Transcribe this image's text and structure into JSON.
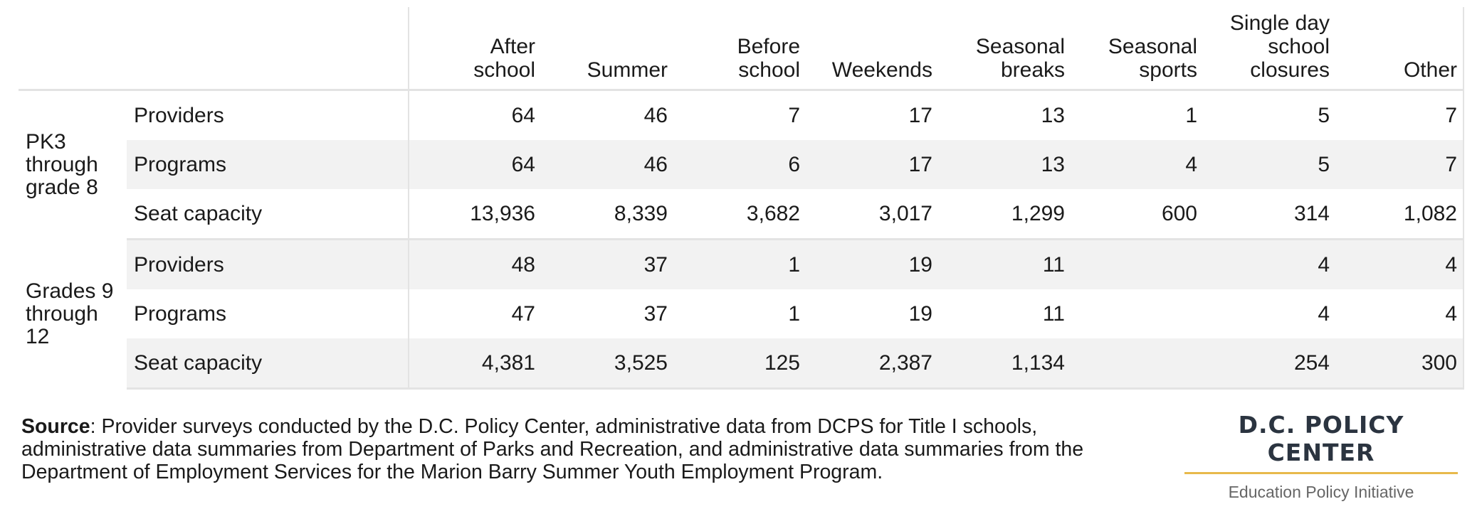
{
  "chart_data": {
    "type": "table",
    "columns": [
      "After school",
      "Summer",
      "Before school",
      "Weekends",
      "Seasonal breaks",
      "Seasonal sports",
      "Single day school closures",
      "Other"
    ],
    "groups": [
      {
        "label": "PK3 through grade 8",
        "rows": [
          {
            "label": "Providers",
            "values": [
              "64",
              "46",
              "7",
              "17",
              "13",
              "1",
              "5",
              "7"
            ]
          },
          {
            "label": "Programs",
            "values": [
              "64",
              "46",
              "6",
              "17",
              "13",
              "4",
              "5",
              "7"
            ]
          },
          {
            "label": "Seat capacity",
            "values": [
              "13,936",
              "8,339",
              "3,682",
              "3,017",
              "1,299",
              "600",
              "314",
              "1,082"
            ]
          }
        ]
      },
      {
        "label": "Grades 9 through 12",
        "rows": [
          {
            "label": "Providers",
            "values": [
              "48",
              "37",
              "1",
              "19",
              "11",
              "",
              "4",
              "4"
            ]
          },
          {
            "label": "Programs",
            "values": [
              "47",
              "37",
              "1",
              "19",
              "11",
              "",
              "4",
              "4"
            ]
          },
          {
            "label": "Seat capacity",
            "values": [
              "4,381",
              "3,525",
              "125",
              "2,387",
              "1,134",
              "",
              "254",
              "300"
            ]
          }
        ]
      }
    ]
  },
  "footer": {
    "source_label": "Source",
    "source_text": ": Provider surveys conducted by the D.C. Policy Center, administrative data from DCPS for Title I schools, administrative data summaries from Department of Parks and Recreation, and administrative data summaries from the Department of Employment Services for the Marion Barry Summer Youth Employment Program."
  },
  "logo": {
    "name": "D.C. POLICY CENTER",
    "subtitle": "Education Policy Initiative",
    "accent_color": "#e8b94b"
  }
}
